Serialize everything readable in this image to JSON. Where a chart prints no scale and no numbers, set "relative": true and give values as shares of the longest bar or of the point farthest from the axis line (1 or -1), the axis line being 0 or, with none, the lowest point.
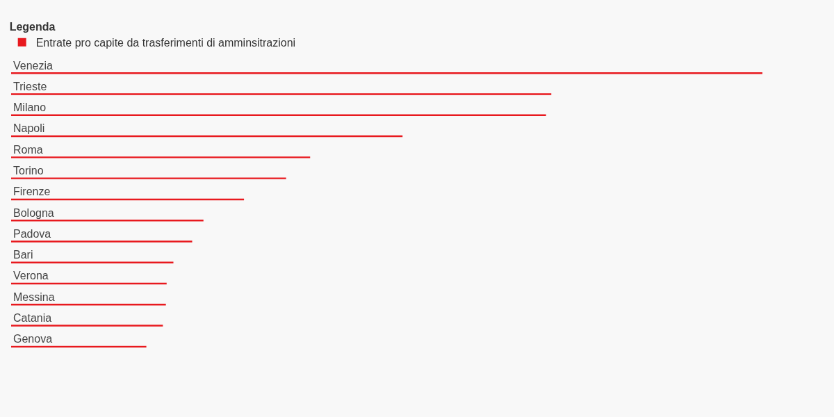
{
  "chart_data": {
    "type": "bar",
    "orientation": "horizontal",
    "relative": true,
    "legend_title": "Legenda",
    "legend": "top left",
    "categories": [
      "Venezia",
      "Trieste",
      "Milano",
      "Napoli",
      "Roma",
      "Torino",
      "Firenze",
      "Bologna",
      "Padova",
      "Bari",
      "Verona",
      "Messina",
      "Catania",
      "Genova"
    ],
    "series": [
      {
        "name": "Entrate pro capite da trasferimenti di amminsitrazioni",
        "color": "#e8191e",
        "values": [
          1,
          0.719,
          0.712,
          0.521,
          0.398,
          0.366,
          0.31,
          0.256,
          0.241,
          0.216,
          0.207,
          0.206,
          0.202,
          0.18
        ]
      }
    ]
  }
}
